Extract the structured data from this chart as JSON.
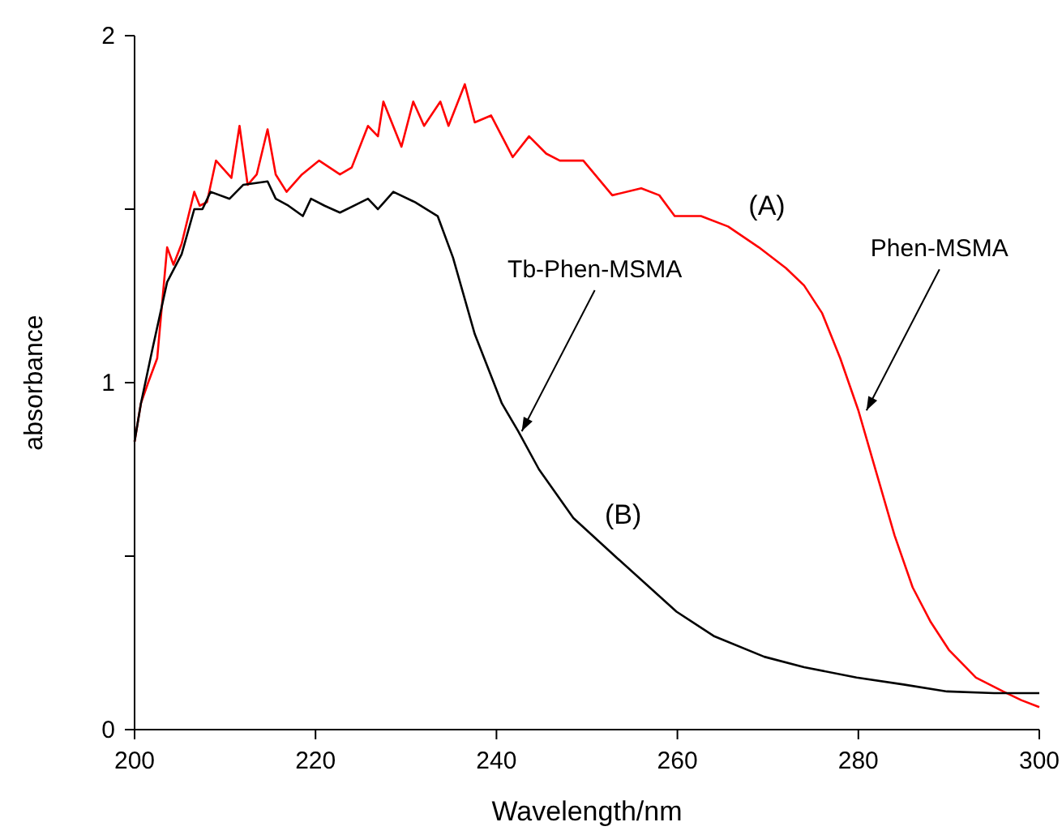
{
  "chart_data": {
    "type": "line",
    "xlabel": "Wavelength/nm",
    "ylabel": "absorbance",
    "xlim": [
      200,
      300
    ],
    "xticks": [
      200,
      220,
      240,
      260,
      280,
      300
    ],
    "ylim": [
      0,
      2
    ],
    "yticks": [
      0,
      {
        "value": 0.5,
        "label": null
      },
      1,
      {
        "value": 1.5,
        "label": null
      },
      2
    ],
    "grid": false,
    "legend": false,
    "marker": "none",
    "line_style": "solid",
    "series": [
      {
        "name": "(A)",
        "color": "#ff0000",
        "x": [
          200,
          200.7,
          201.5,
          202.5,
          203.6,
          204.3,
          205.2,
          206.6,
          207.2,
          208,
          209,
          210.7,
          211.6,
          212.5,
          213.5,
          214.7,
          215.6,
          216.8,
          218.5,
          220.4,
          222.7,
          224,
          225.8,
          226.9,
          227.5,
          229.5,
          230.8,
          232,
          233.8,
          234.7,
          236.5,
          237.6,
          239.4,
          241.8,
          243.6,
          245.5,
          247,
          249.6,
          252.8,
          256,
          258,
          259.7,
          262.6,
          265.6,
          269,
          272,
          274,
          276,
          278,
          280,
          282,
          284,
          286,
          288,
          290,
          293,
          296,
          298,
          300
        ],
        "values": [
          0.83,
          0.94,
          1.0,
          1.07,
          1.39,
          1.34,
          1.4,
          1.55,
          1.51,
          1.52,
          1.64,
          1.59,
          1.74,
          1.57,
          1.6,
          1.73,
          1.6,
          1.55,
          1.6,
          1.64,
          1.6,
          1.62,
          1.74,
          1.71,
          1.81,
          1.68,
          1.81,
          1.74,
          1.81,
          1.74,
          1.86,
          1.75,
          1.77,
          1.65,
          1.71,
          1.66,
          1.64,
          1.64,
          1.54,
          1.56,
          1.54,
          1.48,
          1.48,
          1.45,
          1.39,
          1.33,
          1.28,
          1.2,
          1.07,
          0.92,
          0.74,
          0.56,
          0.41,
          0.31,
          0.23,
          0.15,
          0.11,
          0.085,
          0.065
        ]
      },
      {
        "name": "(B)",
        "color": "#000000",
        "x": [
          200,
          200.7,
          202,
          203.6,
          205.2,
          206.6,
          207.5,
          208.4,
          210.5,
          212,
          214.7,
          215.6,
          217,
          218.6,
          219.5,
          221,
          222.7,
          225.8,
          226.9,
          228.6,
          231,
          233.5,
          235.2,
          237.6,
          240.6,
          242.4,
          244.7,
          248.5,
          253.1,
          259.9,
          264,
          269.6,
          274,
          279.8,
          285,
          289.8,
          295,
          300
        ],
        "values": [
          0.83,
          0.94,
          1.1,
          1.29,
          1.37,
          1.5,
          1.5,
          1.55,
          1.53,
          1.57,
          1.58,
          1.53,
          1.51,
          1.48,
          1.53,
          1.51,
          1.49,
          1.53,
          1.5,
          1.55,
          1.52,
          1.48,
          1.36,
          1.14,
          0.94,
          0.86,
          0.75,
          0.61,
          0.5,
          0.34,
          0.27,
          0.21,
          0.18,
          0.15,
          0.13,
          0.11,
          0.105,
          0.105
        ]
      }
    ],
    "annotations": [
      {
        "text": "Tb-Phen-MSMA",
        "x": 242.8,
        "y": 0.86
      },
      {
        "text": "Phen-MSMA",
        "x": 280.9,
        "y": 0.92
      }
    ]
  }
}
